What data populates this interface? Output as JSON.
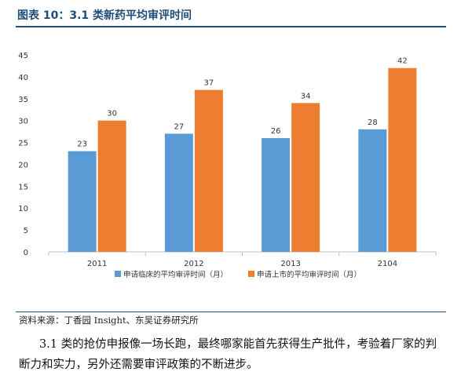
{
  "figure": {
    "title": "图表 10：3.1 类新药平均审评时间",
    "source": "资料来源：丁香园 Insight、东吴证券研究所",
    "paragraph": "3.1 类的抢仿申报像一场长跑，最终哪家能首先获得生产批件，考验着厂家的判断力和实力，另外还需要审评政策的不断进步。"
  },
  "chart_data": {
    "type": "bar",
    "title": "",
    "xlabel": "",
    "ylabel": "",
    "categories": [
      "2011",
      "2012",
      "2013",
      "2104"
    ],
    "series": [
      {
        "name": "申请临床的平均审评时间（月）",
        "values": [
          23,
          27,
          26,
          28
        ],
        "color": "#5b9bd5"
      },
      {
        "name": "申请上市的平均审评时间（月）",
        "values": [
          30,
          37,
          34,
          42
        ],
        "color": "#ed7d31"
      }
    ],
    "ylim": [
      0,
      45
    ],
    "yticks": [
      0,
      5,
      10,
      15,
      20,
      25,
      30,
      35,
      40,
      45
    ],
    "grid": false,
    "legend_position": "bottom",
    "data_labels": true
  }
}
